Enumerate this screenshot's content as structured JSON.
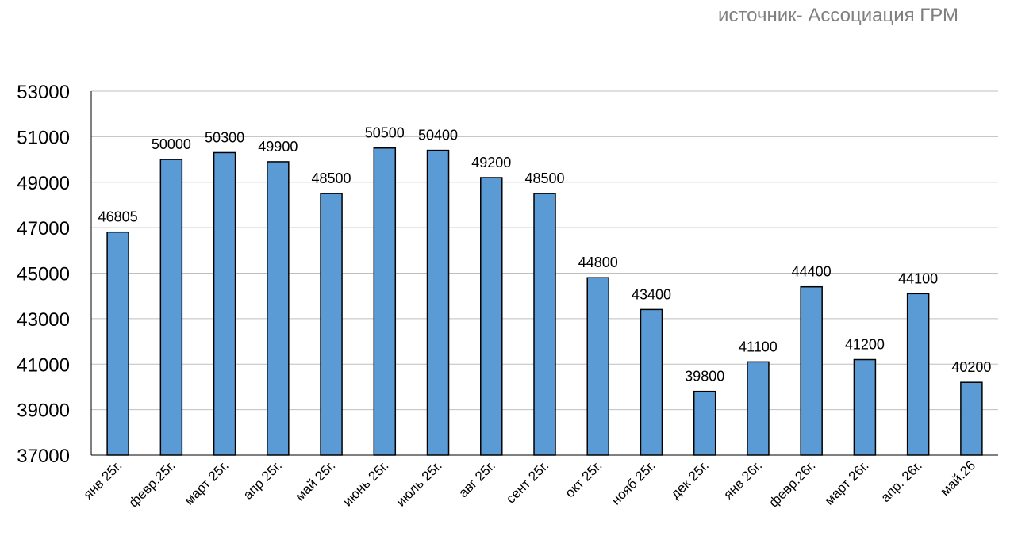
{
  "source_note": "источник- Ассоциация ГРМ",
  "colors": {
    "bar_fill": "#5b9bd5",
    "bar_stroke": "#000000",
    "grid": "#bfbfbf",
    "axis": "#000000",
    "text": "#000000",
    "source_text": "#7f7f7f"
  },
  "chart_data": {
    "type": "bar",
    "title": "",
    "xlabel": "",
    "ylabel": "",
    "ylim": [
      37000,
      53000
    ],
    "yticks": [
      37000,
      39000,
      41000,
      43000,
      45000,
      47000,
      49000,
      51000,
      53000
    ],
    "grid": true,
    "categories": [
      "янв 25г.",
      "февр.25г.",
      "март 25г.",
      "апр 25г.",
      "май 25г.",
      "июнь 25г.",
      "июль 25г.",
      "авг 25г.",
      "сент 25г.",
      "окт 25г.",
      "нояб 25г.",
      "дек 25г.",
      "янв 26г.",
      "февр.26г.",
      "март 26г.",
      "апр. 26г.",
      "май.26"
    ],
    "values": [
      46805,
      50000,
      50300,
      49900,
      48500,
      50500,
      50400,
      49200,
      48500,
      44800,
      43400,
      39800,
      41100,
      44400,
      41200,
      44100,
      40200
    ],
    "data_labels": [
      "46805",
      "50000",
      "50300",
      "49900",
      "48500",
      "50500",
      "50400",
      "49200",
      "48500",
      "44800",
      "43400",
      "39800",
      "41100",
      "44400",
      "41200",
      "44100",
      "40200"
    ]
  }
}
